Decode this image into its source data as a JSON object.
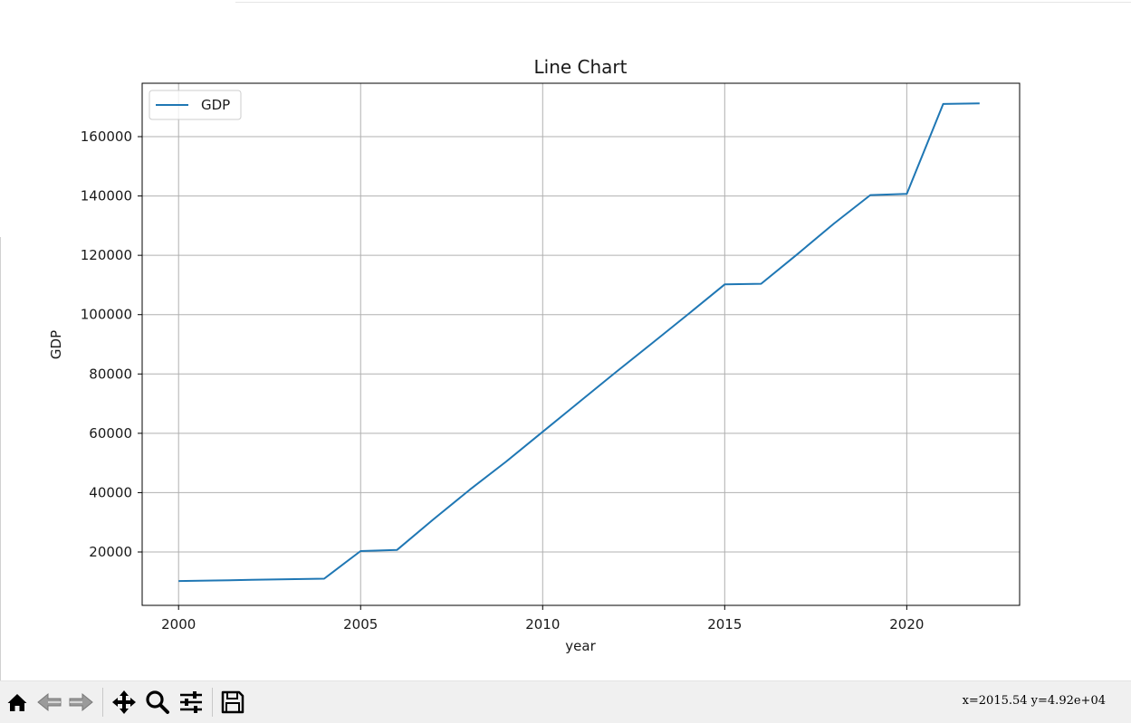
{
  "chart_data": {
    "type": "line",
    "title": "Line Chart",
    "xlabel": "year",
    "ylabel": "GDP",
    "xlim": [
      1999,
      2023.1
    ],
    "ylim": [
      2000,
      178000
    ],
    "xticks": [
      2000,
      2005,
      2010,
      2015,
      2020
    ],
    "yticks": [
      20000,
      40000,
      60000,
      80000,
      100000,
      120000,
      140000,
      160000
    ],
    "grid": true,
    "legend_position": "upper-left",
    "series": [
      {
        "name": "GDP",
        "color": "#1f77b4",
        "x": [
          2000,
          2001,
          2002,
          2003,
          2004,
          2005,
          2006,
          2007,
          2008,
          2009,
          2010,
          2011,
          2012,
          2013,
          2014,
          2015,
          2016,
          2017,
          2018,
          2019,
          2020,
          2021,
          2022
        ],
        "y": [
          10200,
          10400,
          10600,
          10800,
          11000,
          20300,
          20700,
          31000,
          41000,
          50500,
          60500,
          70500,
          80500,
          90300,
          100200,
          110200,
          110400,
          120400,
          130700,
          140300,
          140700,
          171000,
          171200
        ]
      }
    ]
  },
  "toolbar": {
    "buttons": [
      {
        "name": "home-icon",
        "icon": "home"
      },
      {
        "name": "back-icon",
        "icon": "arrow-left"
      },
      {
        "name": "forward-icon",
        "icon": "arrow-right"
      },
      {
        "name": "pan-icon",
        "icon": "move"
      },
      {
        "name": "zoom-icon",
        "icon": "magnifier"
      },
      {
        "name": "configure-subplots-icon",
        "icon": "sliders"
      },
      {
        "name": "save-icon",
        "icon": "floppy-disk"
      }
    ],
    "coordinates": "x=2015.54 y=4.92e+04"
  }
}
